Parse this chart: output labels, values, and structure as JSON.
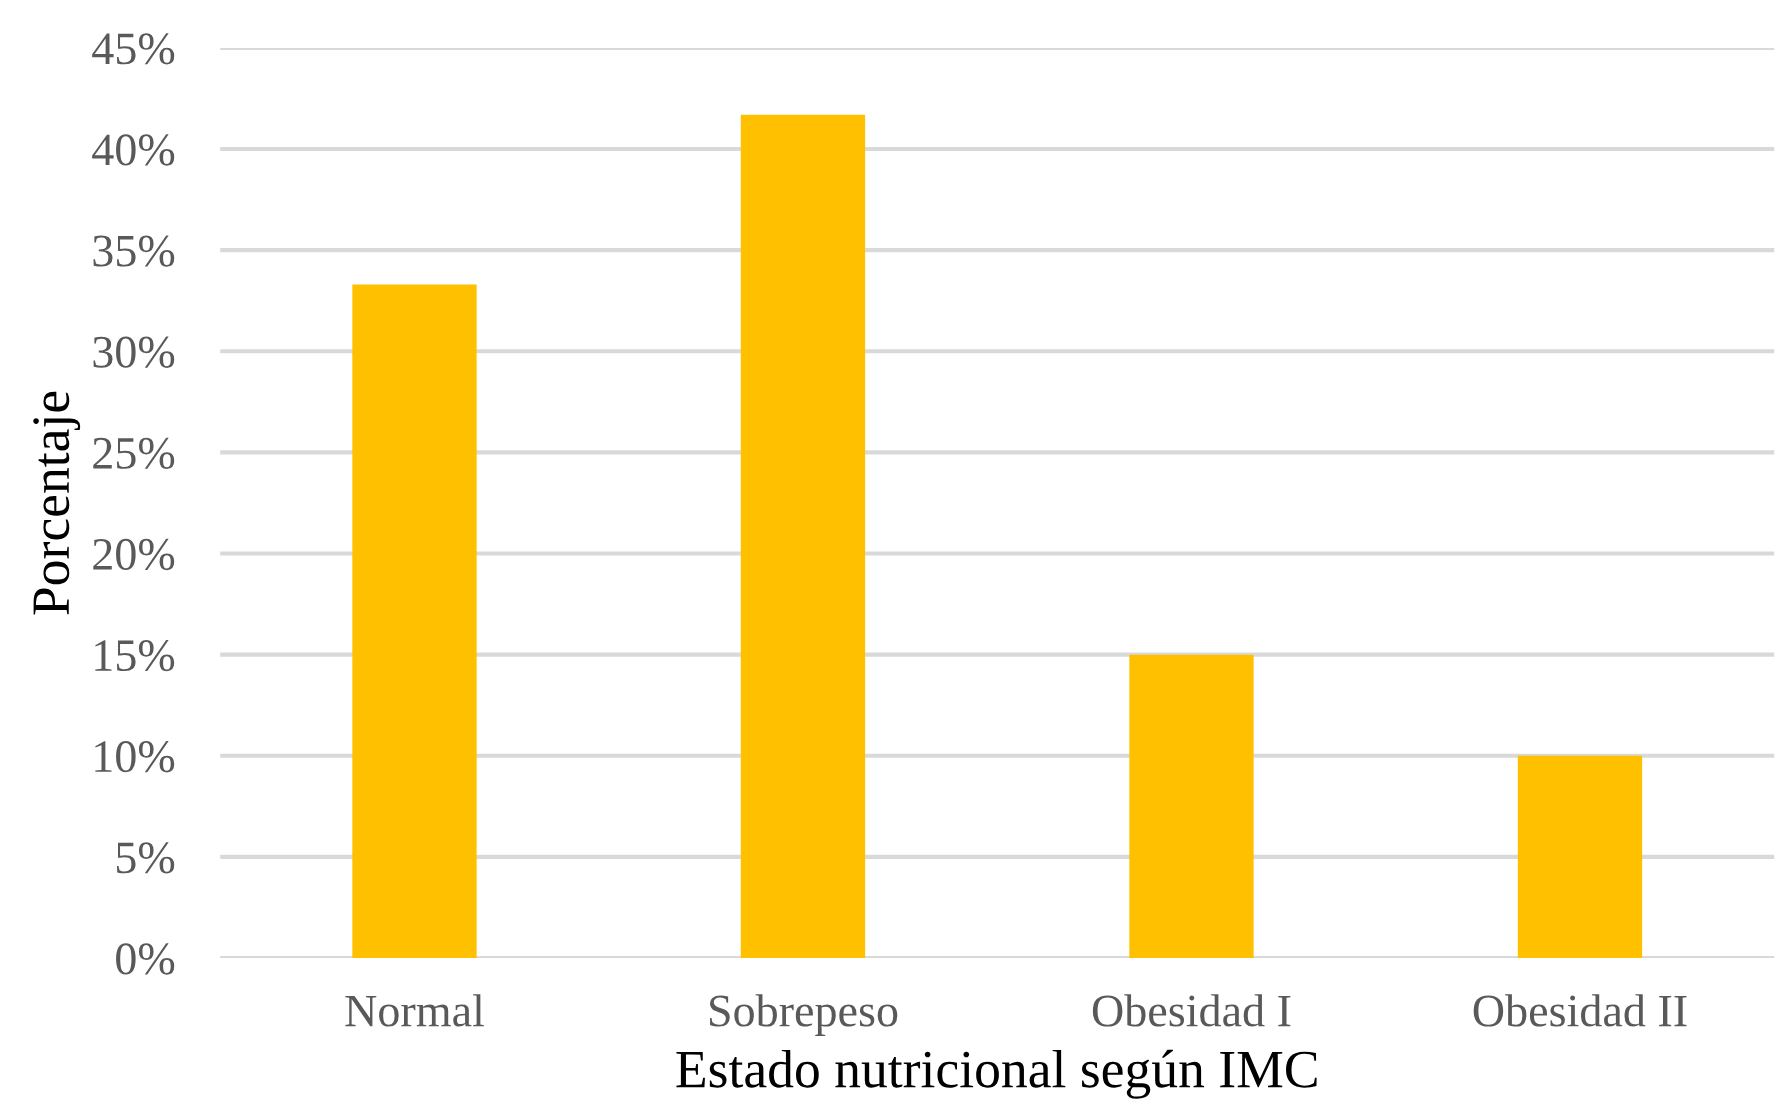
{
  "chart_data": {
    "type": "bar",
    "xlabel": "Estado nutricional según IMC",
    "ylabel": "Porcentaje",
    "categories": [
      "Normal",
      "Sobrepeso",
      "Obesidad I",
      "Obesidad II"
    ],
    "series": [
      {
        "color": "#ffc000",
        "values": [
          33.3,
          41.7,
          15.0,
          10.0
        ]
      }
    ],
    "ylim": [
      0,
      45
    ],
    "yticks": [
      {
        "value": 0,
        "label": "0%"
      },
      {
        "value": 5,
        "label": "5%"
      },
      {
        "value": 10,
        "label": "10%"
      },
      {
        "value": 15,
        "label": "15%"
      },
      {
        "value": 20,
        "label": "20%"
      },
      {
        "value": 25,
        "label": "25%"
      },
      {
        "value": 30,
        "label": "30%"
      },
      {
        "value": 35,
        "label": "35%"
      },
      {
        "value": 40,
        "label": "40%"
      },
      {
        "value": 45,
        "label": "45%"
      }
    ],
    "grid": "y"
  }
}
